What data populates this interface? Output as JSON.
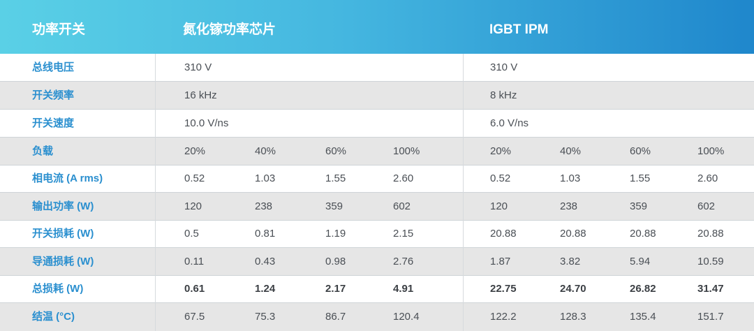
{
  "header": {
    "col0": "功率开关",
    "col1": "氮化镓功率芯片",
    "col2": "IGBT IPM"
  },
  "rows": [
    {
      "label": "总线电压",
      "gan": [
        "310 V"
      ],
      "igbt": [
        "310 V"
      ]
    },
    {
      "label": "开关频率",
      "gan": [
        "16 kHz"
      ],
      "igbt": [
        "8 kHz"
      ]
    },
    {
      "label": "开关速度",
      "gan": [
        "10.0 V/ns"
      ],
      "igbt": [
        "6.0 V/ns"
      ]
    },
    {
      "label": "负载",
      "gan": [
        "20%",
        "40%",
        "60%",
        "100%"
      ],
      "igbt": [
        "20%",
        "40%",
        "60%",
        "100%"
      ]
    },
    {
      "label": "相电流 (A rms)",
      "gan": [
        "0.52",
        "1.03",
        "1.55",
        "2.60"
      ],
      "igbt": [
        "0.52",
        "1.03",
        "1.55",
        "2.60"
      ]
    },
    {
      "label": "输出功率 (W)",
      "gan": [
        "120",
        "238",
        "359",
        "602"
      ],
      "igbt": [
        "120",
        "238",
        "359",
        "602"
      ]
    },
    {
      "label": "开关损耗 (W)",
      "gan": [
        "0.5",
        "0.81",
        "1.19",
        "2.15"
      ],
      "igbt": [
        "20.88",
        "20.88",
        "20.88",
        "20.88"
      ]
    },
    {
      "label": "导通损耗 (W)",
      "gan": [
        "0.11",
        "0.43",
        "0.98",
        "2.76"
      ],
      "igbt": [
        "1.87",
        "3.82",
        "5.94",
        "10.59"
      ]
    },
    {
      "label": "总损耗 (W)",
      "gan": [
        "0.61",
        "1.24",
        "2.17",
        "4.91"
      ],
      "igbt": [
        "22.75",
        "24.70",
        "26.82",
        "31.47"
      ]
    },
    {
      "label": "结温 (°C)",
      "gan": [
        "67.5",
        "75.3",
        "86.7",
        "120.4"
      ],
      "igbt": [
        "122.2",
        "128.3",
        "135.4",
        "151.7"
      ]
    }
  ],
  "colors": {
    "header_start": "#5ad0e6",
    "header_end": "#1f87cc",
    "label": "#2a8fcf",
    "shade": "#e6e6e6"
  }
}
